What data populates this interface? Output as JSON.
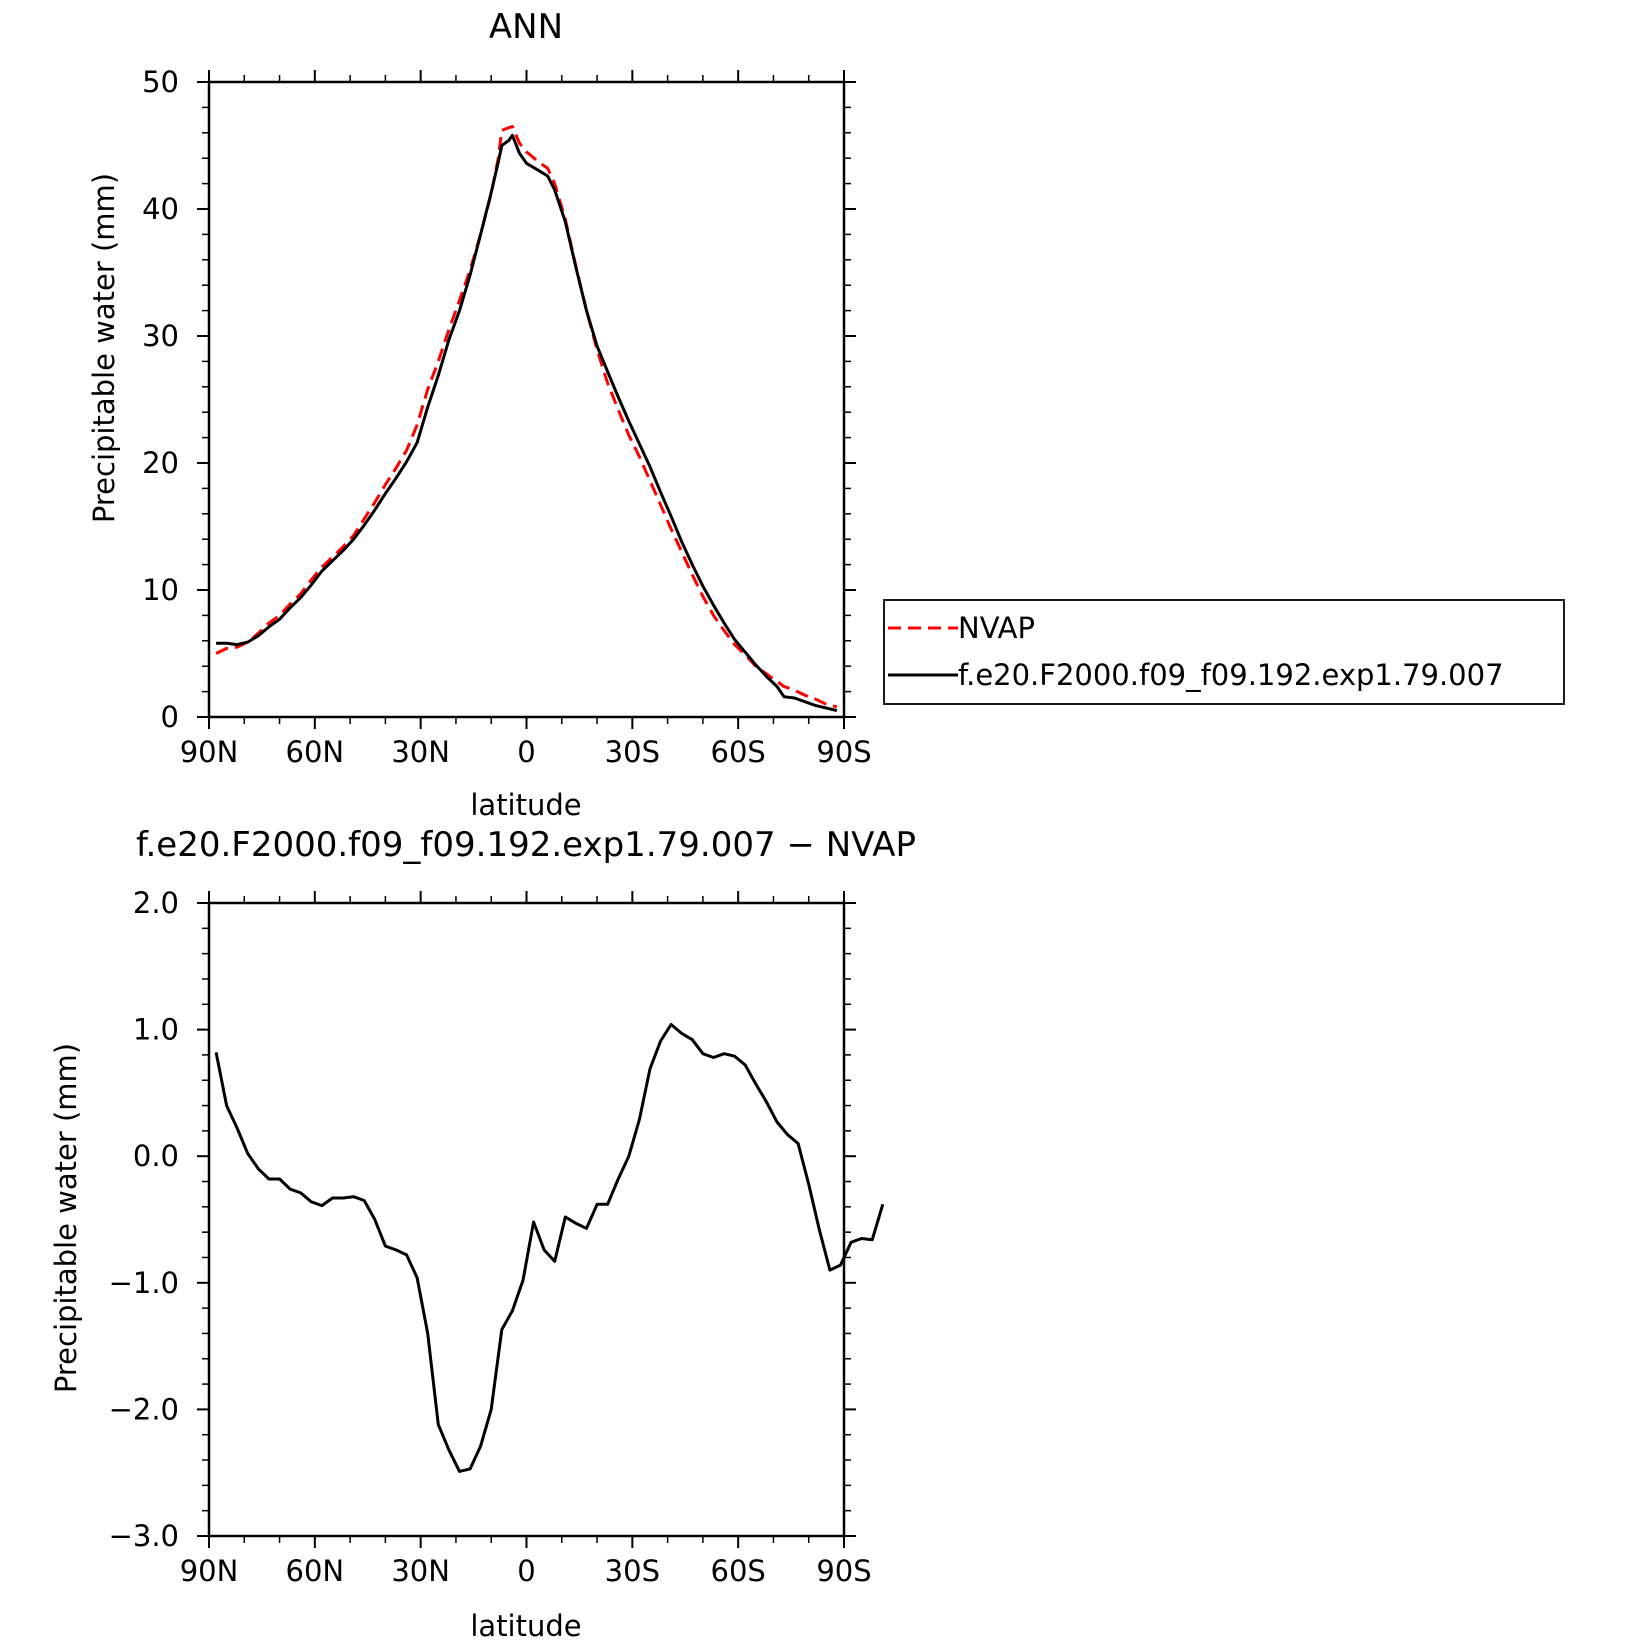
{
  "chart_data": [
    {
      "type": "line",
      "title": "ANN",
      "xlabel": "latitude",
      "ylabel": "Precipitable water (mm)",
      "xlim": [
        90,
        -90
      ],
      "ylim": [
        0,
        50
      ],
      "x_ticks": [
        {
          "value": 90,
          "label": "90N"
        },
        {
          "value": 60,
          "label": "60N"
        },
        {
          "value": 30,
          "label": "30N"
        },
        {
          "value": 0,
          "label": "0"
        },
        {
          "value": -30,
          "label": "30S"
        },
        {
          "value": -60,
          "label": "60S"
        },
        {
          "value": -90,
          "label": "90S"
        }
      ],
      "y_ticks": [
        {
          "value": 0,
          "label": "0"
        },
        {
          "value": 10,
          "label": "10"
        },
        {
          "value": 20,
          "label": "20"
        },
        {
          "value": 30,
          "label": "30"
        },
        {
          "value": 40,
          "label": "40"
        },
        {
          "value": 50,
          "label": "50"
        }
      ],
      "grid": false,
      "legend_position": "right",
      "series": [
        {
          "name": "NVAP",
          "color": "#ff0000",
          "dash": "dashed",
          "points": [
            [
              88,
              5.0
            ],
            [
              85,
              5.4
            ],
            [
              82,
              5.5
            ],
            [
              79,
              5.9
            ],
            [
              76,
              6.6
            ],
            [
              73,
              7.4
            ],
            [
              70,
              8.0
            ],
            [
              67,
              8.9
            ],
            [
              64,
              9.7
            ],
            [
              61,
              10.8
            ],
            [
              58,
              11.8
            ],
            [
              55,
              12.6
            ],
            [
              52,
              13.4
            ],
            [
              49,
              14.3
            ],
            [
              46,
              15.6
            ],
            [
              43,
              16.9
            ],
            [
              40,
              18.3
            ],
            [
              37,
              19.6
            ],
            [
              34,
              21.0
            ],
            [
              31,
              23.0
            ],
            [
              28,
              25.8
            ],
            [
              25,
              28.0
            ],
            [
              22,
              30.5
            ],
            [
              19,
              32.8
            ],
            [
              16,
              35.2
            ],
            [
              13,
              38.0
            ],
            [
              10,
              41.2
            ],
            [
              8,
              44.0
            ],
            [
              7,
              46.2
            ],
            [
              5,
              46.4
            ],
            [
              4,
              46.5
            ],
            [
              2,
              45.2
            ],
            [
              0,
              44.5
            ],
            [
              -3,
              43.8
            ],
            [
              -6,
              43.2
            ],
            [
              -8,
              42.0
            ],
            [
              -11,
              39.2
            ],
            [
              -14,
              35.5
            ],
            [
              -17,
              32.0
            ],
            [
              -20,
              28.9
            ],
            [
              -23,
              26.3
            ],
            [
              -26,
              24.2
            ],
            [
              -29,
              22.2
            ],
            [
              -32,
              20.5
            ],
            [
              -35,
              18.6
            ],
            [
              -38,
              16.7
            ],
            [
              -41,
              14.8
            ],
            [
              -44,
              13.0
            ],
            [
              -47,
              11.2
            ],
            [
              -50,
              9.5
            ],
            [
              -53,
              8.0
            ],
            [
              -56,
              6.8
            ],
            [
              -59,
              5.7
            ],
            [
              -62,
              4.9
            ],
            [
              -65,
              4.0
            ],
            [
              -68,
              3.4
            ],
            [
              -71,
              2.8
            ],
            [
              -73,
              2.4
            ],
            [
              -76,
              2.1
            ],
            [
              -79,
              1.7
            ],
            [
              -82,
              1.4
            ],
            [
              -85,
              1.0
            ],
            [
              -88,
              0.8
            ]
          ]
        },
        {
          "name": "f.e20.F2000.f09_f09.192.exp1.79.007",
          "color": "#000000",
          "dash": "solid",
          "points": [
            [
              88,
              5.8
            ],
            [
              85,
              5.8
            ],
            [
              82,
              5.7
            ],
            [
              79,
              5.9
            ],
            [
              76,
              6.4
            ],
            [
              73,
              7.1
            ],
            [
              70,
              7.7
            ],
            [
              67,
              8.6
            ],
            [
              64,
              9.4
            ],
            [
              61,
              10.4
            ],
            [
              58,
              11.5
            ],
            [
              55,
              12.3
            ],
            [
              52,
              13.1
            ],
            [
              49,
              14.0
            ],
            [
              46,
              15.1
            ],
            [
              43,
              16.3
            ],
            [
              40,
              17.6
            ],
            [
              37,
              18.8
            ],
            [
              34,
              20.1
            ],
            [
              31,
              21.6
            ],
            [
              28,
              24.4
            ],
            [
              25,
              26.9
            ],
            [
              22,
              29.7
            ],
            [
              19,
              32.0
            ],
            [
              16,
              34.8
            ],
            [
              13,
              38.0
            ],
            [
              10,
              41.3
            ],
            [
              8,
              43.7
            ],
            [
              7,
              45.0
            ],
            [
              5,
              45.4
            ],
            [
              4,
              45.8
            ],
            [
              2,
              44.4
            ],
            [
              0,
              43.6
            ],
            [
              -3,
              43.1
            ],
            [
              -6,
              42.6
            ],
            [
              -8,
              41.5
            ],
            [
              -11,
              39.0
            ],
            [
              -14,
              35.4
            ],
            [
              -17,
              32.0
            ],
            [
              -20,
              29.2
            ],
            [
              -23,
              27.2
            ],
            [
              -26,
              25.2
            ],
            [
              -29,
              23.3
            ],
            [
              -32,
              21.5
            ],
            [
              -35,
              19.7
            ],
            [
              -38,
              17.7
            ],
            [
              -41,
              15.8
            ],
            [
              -44,
              13.8
            ],
            [
              -47,
              12.0
            ],
            [
              -50,
              10.3
            ],
            [
              -53,
              8.8
            ],
            [
              -56,
              7.4
            ],
            [
              -59,
              6.1
            ],
            [
              -62,
              5.1
            ],
            [
              -65,
              4.1
            ],
            [
              -68,
              3.2
            ],
            [
              -71,
              2.4
            ],
            [
              -73,
              1.6
            ],
            [
              -76,
              1.5
            ],
            [
              -79,
              1.2
            ],
            [
              -82,
              0.9
            ],
            [
              -85,
              0.7
            ],
            [
              -88,
              0.5
            ]
          ]
        }
      ]
    },
    {
      "type": "line",
      "title": "f.e20.F2000.f09_f09.192.exp1.79.007 − NVAP",
      "xlabel": "latitude",
      "ylabel": "Precipitable water (mm)",
      "xlim": [
        90,
        -90
      ],
      "ylim": [
        -3.0,
        2.0
      ],
      "x_ticks": [
        {
          "value": 90,
          "label": "90N"
        },
        {
          "value": 60,
          "label": "60N"
        },
        {
          "value": 30,
          "label": "30N"
        },
        {
          "value": 0,
          "label": "0"
        },
        {
          "value": -30,
          "label": "30S"
        },
        {
          "value": -60,
          "label": "60S"
        },
        {
          "value": -90,
          "label": "90S"
        }
      ],
      "y_ticks": [
        {
          "value": 2.0,
          "label": "2.0"
        },
        {
          "value": 1.0,
          "label": "1.0"
        },
        {
          "value": 0.0,
          "label": "0.0"
        },
        {
          "value": -1.0,
          "label": "−1.0"
        },
        {
          "value": -2.0,
          "label": "−2.0"
        },
        {
          "value": -3.0,
          "label": "−3.0"
        }
      ],
      "grid": false,
      "series": [
        {
          "color": "#000000",
          "dash": "solid",
          "points": [
            [
              88,
              0.82
            ],
            [
              85,
              0.4
            ],
            [
              82,
              0.22
            ],
            [
              79,
              0.02
            ],
            [
              76,
              -0.1
            ],
            [
              73,
              -0.18
            ],
            [
              70,
              -0.18
            ],
            [
              67,
              -0.26
            ],
            [
              64,
              -0.29
            ],
            [
              61,
              -0.36
            ],
            [
              58,
              -0.39
            ],
            [
              55,
              -0.33
            ],
            [
              52,
              -0.33
            ],
            [
              49,
              -0.32
            ],
            [
              46,
              -0.35
            ],
            [
              43,
              -0.5
            ],
            [
              40,
              -0.71
            ],
            [
              37,
              -0.74
            ],
            [
              34,
              -0.78
            ],
            [
              31,
              -0.96
            ],
            [
              28,
              -1.4
            ],
            [
              25,
              -2.12
            ],
            [
              22,
              -2.32
            ],
            [
              19,
              -2.49
            ],
            [
              16,
              -2.47
            ],
            [
              13,
              -2.29
            ],
            [
              10,
              -2.0
            ],
            [
              7,
              -1.37
            ],
            [
              4,
              -1.22
            ],
            [
              1,
              -0.98
            ],
            [
              -2,
              -0.52
            ],
            [
              -5,
              -0.74
            ],
            [
              -8,
              -0.83
            ],
            [
              -11,
              -0.48
            ],
            [
              -14,
              -0.53
            ],
            [
              -17,
              -0.57
            ],
            [
              -20,
              -0.38
            ],
            [
              -23,
              -0.38
            ],
            [
              -26,
              -0.18
            ],
            [
              -29,
              0.0
            ],
            [
              -32,
              0.29
            ],
            [
              -35,
              0.69
            ],
            [
              -38,
              0.91
            ],
            [
              -41,
              1.04
            ],
            [
              -44,
              0.97
            ],
            [
              -47,
              0.92
            ],
            [
              -50,
              0.81
            ],
            [
              -53,
              0.78
            ],
            [
              -56,
              0.81
            ],
            [
              -59,
              0.79
            ],
            [
              -62,
              0.72
            ],
            [
              -65,
              0.57
            ],
            [
              -68,
              0.43
            ],
            [
              -71,
              0.27
            ],
            [
              -74,
              0.17
            ],
            [
              -77,
              0.1
            ],
            [
              -80,
              -0.22
            ],
            [
              -83,
              -0.58
            ],
            [
              -86,
              -0.9
            ],
            [
              -89,
              -0.86
            ],
            [
              -92,
              -0.68
            ],
            [
              -95,
              -0.65
            ],
            [
              -98,
              -0.66
            ],
            [
              -101,
              -0.38
            ]
          ]
        }
      ]
    }
  ]
}
